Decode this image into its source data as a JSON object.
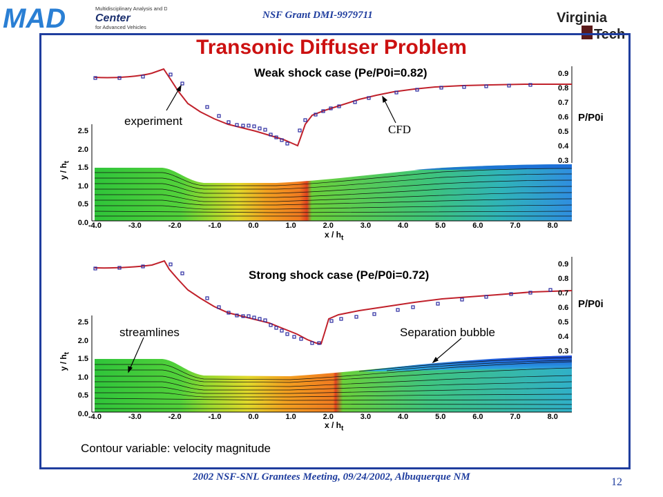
{
  "header": {
    "logo_text": "MAD",
    "logo_subtitle_1": "Multidisciplinary Analysis and Design",
    "logo_center": "Center",
    "logo_subtitle_2": "for Advanced Vehicles",
    "grant": "NSF Grant DMI-9979711",
    "university_logo_line1": "Virginia",
    "university_logo_line2": "Tech"
  },
  "title": "Transonic Diffuser Problem",
  "panels": [
    {
      "case_label": "Weak shock case (Pe/P0i=0.82)",
      "annotations": [
        "experiment",
        "CFD"
      ],
      "pressure_axis_label": "P/P0i",
      "pressure_ticks": [
        "0.9",
        "0.8",
        "0.7",
        "0.6",
        "0.5",
        "0.4",
        "0.3"
      ],
      "y_axis_label": "y / h",
      "y_axis_sub": "t",
      "y_ticks": [
        "2.5",
        "2.0",
        "1.5",
        "1.0",
        "0.5",
        "0.0"
      ],
      "x_axis_label": "x / h",
      "x_axis_sub": "t",
      "x_ticks": [
        "-4.0",
        "-3.0",
        "-2.0",
        "-1.0",
        "0.0",
        "1.0",
        "2.0",
        "3.0",
        "4.0",
        "5.0",
        "6.0",
        "7.0",
        "8.0"
      ]
    },
    {
      "case_label": "Strong shock case (Pe/P0i=0.72)",
      "annotations": [
        "streamlines",
        "Separation bubble"
      ],
      "pressure_axis_label": "P/P0i",
      "pressure_ticks": [
        "0.9",
        "0.8",
        "0.7",
        "0.6",
        "0.5",
        "0.4",
        "0.3"
      ],
      "y_axis_label": "y / h",
      "y_axis_sub": "t",
      "y_ticks": [
        "2.5",
        "2.0",
        "1.5",
        "1.0",
        "0.5",
        "0.0"
      ],
      "x_axis_label": "x / h",
      "x_axis_sub": "t",
      "x_ticks": [
        "-4.0",
        "-3.0",
        "-2.0",
        "-1.0",
        "0.0",
        "1.0",
        "2.0",
        "3.0",
        "4.0",
        "5.0",
        "6.0",
        "7.0",
        "8.0"
      ]
    }
  ],
  "caption": "Contour variable: velocity magnitude",
  "footer": "2002 NSF-SNL Grantees Meeting, 09/24/2002, Albuquerque NM",
  "page_number": "12",
  "colors": {
    "title": "#cc1111",
    "frame": "#1f3d9e",
    "cfd_line": "#c0202a",
    "experiment_marker": "#2a2aa0"
  }
}
